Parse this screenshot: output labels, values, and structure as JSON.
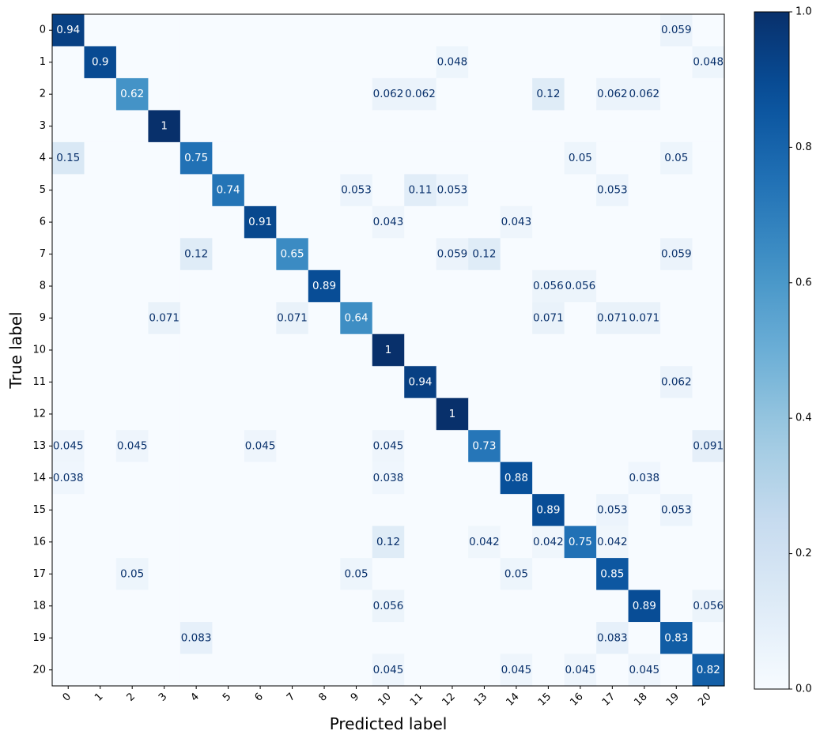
{
  "chart_data": {
    "type": "heatmap",
    "title": "",
    "xlabel": "Predicted label",
    "ylabel": "True label",
    "x_categories": [
      "0",
      "1",
      "2",
      "3",
      "4",
      "5",
      "6",
      "7",
      "8",
      "9",
      "10",
      "11",
      "12",
      "13",
      "14",
      "15",
      "16",
      "17",
      "18",
      "19",
      "20"
    ],
    "y_categories": [
      "0",
      "1",
      "2",
      "3",
      "4",
      "5",
      "6",
      "7",
      "8",
      "9",
      "10",
      "11",
      "12",
      "13",
      "14",
      "15",
      "16",
      "17",
      "18",
      "19",
      "20"
    ],
    "colormap": "Blues",
    "value_range": [
      0,
      1
    ],
    "colorbar_ticks": [
      "0.0",
      "0.2",
      "0.4",
      "0.6",
      "0.8",
      "1.0"
    ],
    "colorbar_tick_values": [
      0,
      0.2,
      0.4,
      0.6,
      0.8,
      1.0
    ],
    "text_color_dark": "#08306b",
    "text_color_light": "#ffffff",
    "cells": [
      {
        "row": 0,
        "col": 0,
        "value": 0.94,
        "label": "0.94"
      },
      {
        "row": 0,
        "col": 19,
        "value": 0.059,
        "label": "0.059"
      },
      {
        "row": 1,
        "col": 1,
        "value": 0.9,
        "label": "0.9"
      },
      {
        "row": 1,
        "col": 12,
        "value": 0.048,
        "label": "0.048"
      },
      {
        "row": 1,
        "col": 20,
        "value": 0.048,
        "label": "0.048"
      },
      {
        "row": 2,
        "col": 2,
        "value": 0.62,
        "label": "0.62"
      },
      {
        "row": 2,
        "col": 10,
        "value": 0.062,
        "label": "0.062"
      },
      {
        "row": 2,
        "col": 11,
        "value": 0.062,
        "label": "0.062"
      },
      {
        "row": 2,
        "col": 15,
        "value": 0.12,
        "label": "0.12"
      },
      {
        "row": 2,
        "col": 17,
        "value": 0.062,
        "label": "0.062"
      },
      {
        "row": 2,
        "col": 18,
        "value": 0.062,
        "label": "0.062"
      },
      {
        "row": 3,
        "col": 3,
        "value": 1.0,
        "label": "1"
      },
      {
        "row": 4,
        "col": 0,
        "value": 0.15,
        "label": "0.15"
      },
      {
        "row": 4,
        "col": 4,
        "value": 0.75,
        "label": "0.75"
      },
      {
        "row": 4,
        "col": 16,
        "value": 0.05,
        "label": "0.05"
      },
      {
        "row": 4,
        "col": 19,
        "value": 0.05,
        "label": "0.05"
      },
      {
        "row": 5,
        "col": 5,
        "value": 0.74,
        "label": "0.74"
      },
      {
        "row": 5,
        "col": 9,
        "value": 0.053,
        "label": "0.053"
      },
      {
        "row": 5,
        "col": 11,
        "value": 0.11,
        "label": "0.11"
      },
      {
        "row": 5,
        "col": 12,
        "value": 0.053,
        "label": "0.053"
      },
      {
        "row": 5,
        "col": 17,
        "value": 0.053,
        "label": "0.053"
      },
      {
        "row": 6,
        "col": 6,
        "value": 0.91,
        "label": "0.91"
      },
      {
        "row": 6,
        "col": 10,
        "value": 0.043,
        "label": "0.043"
      },
      {
        "row": 6,
        "col": 14,
        "value": 0.043,
        "label": "0.043"
      },
      {
        "row": 7,
        "col": 4,
        "value": 0.12,
        "label": "0.12"
      },
      {
        "row": 7,
        "col": 7,
        "value": 0.65,
        "label": "0.65"
      },
      {
        "row": 7,
        "col": 12,
        "value": 0.059,
        "label": "0.059"
      },
      {
        "row": 7,
        "col": 13,
        "value": 0.12,
        "label": "0.12"
      },
      {
        "row": 7,
        "col": 19,
        "value": 0.059,
        "label": "0.059"
      },
      {
        "row": 8,
        "col": 8,
        "value": 0.89,
        "label": "0.89"
      },
      {
        "row": 8,
        "col": 15,
        "value": 0.056,
        "label": "0.056"
      },
      {
        "row": 8,
        "col": 16,
        "value": 0.056,
        "label": "0.056"
      },
      {
        "row": 9,
        "col": 3,
        "value": 0.071,
        "label": "0.071"
      },
      {
        "row": 9,
        "col": 7,
        "value": 0.071,
        "label": "0.071"
      },
      {
        "row": 9,
        "col": 9,
        "value": 0.64,
        "label": "0.64"
      },
      {
        "row": 9,
        "col": 15,
        "value": 0.071,
        "label": "0.071"
      },
      {
        "row": 9,
        "col": 17,
        "value": 0.071,
        "label": "0.071"
      },
      {
        "row": 9,
        "col": 18,
        "value": 0.071,
        "label": "0.071"
      },
      {
        "row": 10,
        "col": 10,
        "value": 1.0,
        "label": "1"
      },
      {
        "row": 11,
        "col": 11,
        "value": 0.94,
        "label": "0.94"
      },
      {
        "row": 11,
        "col": 19,
        "value": 0.062,
        "label": "0.062"
      },
      {
        "row": 12,
        "col": 12,
        "value": 1.0,
        "label": "1"
      },
      {
        "row": 13,
        "col": 0,
        "value": 0.045,
        "label": "0.045"
      },
      {
        "row": 13,
        "col": 2,
        "value": 0.045,
        "label": "0.045"
      },
      {
        "row": 13,
        "col": 6,
        "value": 0.045,
        "label": "0.045"
      },
      {
        "row": 13,
        "col": 10,
        "value": 0.045,
        "label": "0.045"
      },
      {
        "row": 13,
        "col": 13,
        "value": 0.73,
        "label": "0.73"
      },
      {
        "row": 13,
        "col": 20,
        "value": 0.091,
        "label": "0.091"
      },
      {
        "row": 14,
        "col": 0,
        "value": 0.038,
        "label": "0.038"
      },
      {
        "row": 14,
        "col": 10,
        "value": 0.038,
        "label": "0.038"
      },
      {
        "row": 14,
        "col": 14,
        "value": 0.88,
        "label": "0.88"
      },
      {
        "row": 14,
        "col": 18,
        "value": 0.038,
        "label": "0.038"
      },
      {
        "row": 15,
        "col": 15,
        "value": 0.89,
        "label": "0.89"
      },
      {
        "row": 15,
        "col": 17,
        "value": 0.053,
        "label": "0.053"
      },
      {
        "row": 15,
        "col": 19,
        "value": 0.053,
        "label": "0.053"
      },
      {
        "row": 16,
        "col": 10,
        "value": 0.12,
        "label": "0.12"
      },
      {
        "row": 16,
        "col": 13,
        "value": 0.042,
        "label": "0.042"
      },
      {
        "row": 16,
        "col": 15,
        "value": 0.042,
        "label": "0.042"
      },
      {
        "row": 16,
        "col": 16,
        "value": 0.75,
        "label": "0.75"
      },
      {
        "row": 16,
        "col": 17,
        "value": 0.042,
        "label": "0.042"
      },
      {
        "row": 17,
        "col": 2,
        "value": 0.05,
        "label": "0.05"
      },
      {
        "row": 17,
        "col": 9,
        "value": 0.05,
        "label": "0.05"
      },
      {
        "row": 17,
        "col": 14,
        "value": 0.05,
        "label": "0.05"
      },
      {
        "row": 17,
        "col": 17,
        "value": 0.85,
        "label": "0.85"
      },
      {
        "row": 18,
        "col": 10,
        "value": 0.056,
        "label": "0.056"
      },
      {
        "row": 18,
        "col": 18,
        "value": 0.89,
        "label": "0.89"
      },
      {
        "row": 18,
        "col": 20,
        "value": 0.056,
        "label": "0.056"
      },
      {
        "row": 19,
        "col": 4,
        "value": 0.083,
        "label": "0.083"
      },
      {
        "row": 19,
        "col": 17,
        "value": 0.083,
        "label": "0.083"
      },
      {
        "row": 19,
        "col": 19,
        "value": 0.83,
        "label": "0.83"
      },
      {
        "row": 20,
        "col": 10,
        "value": 0.045,
        "label": "0.045"
      },
      {
        "row": 20,
        "col": 14,
        "value": 0.045,
        "label": "0.045"
      },
      {
        "row": 20,
        "col": 16,
        "value": 0.045,
        "label": "0.045"
      },
      {
        "row": 20,
        "col": 18,
        "value": 0.045,
        "label": "0.045"
      },
      {
        "row": 20,
        "col": 20,
        "value": 0.82,
        "label": "0.82"
      }
    ]
  }
}
